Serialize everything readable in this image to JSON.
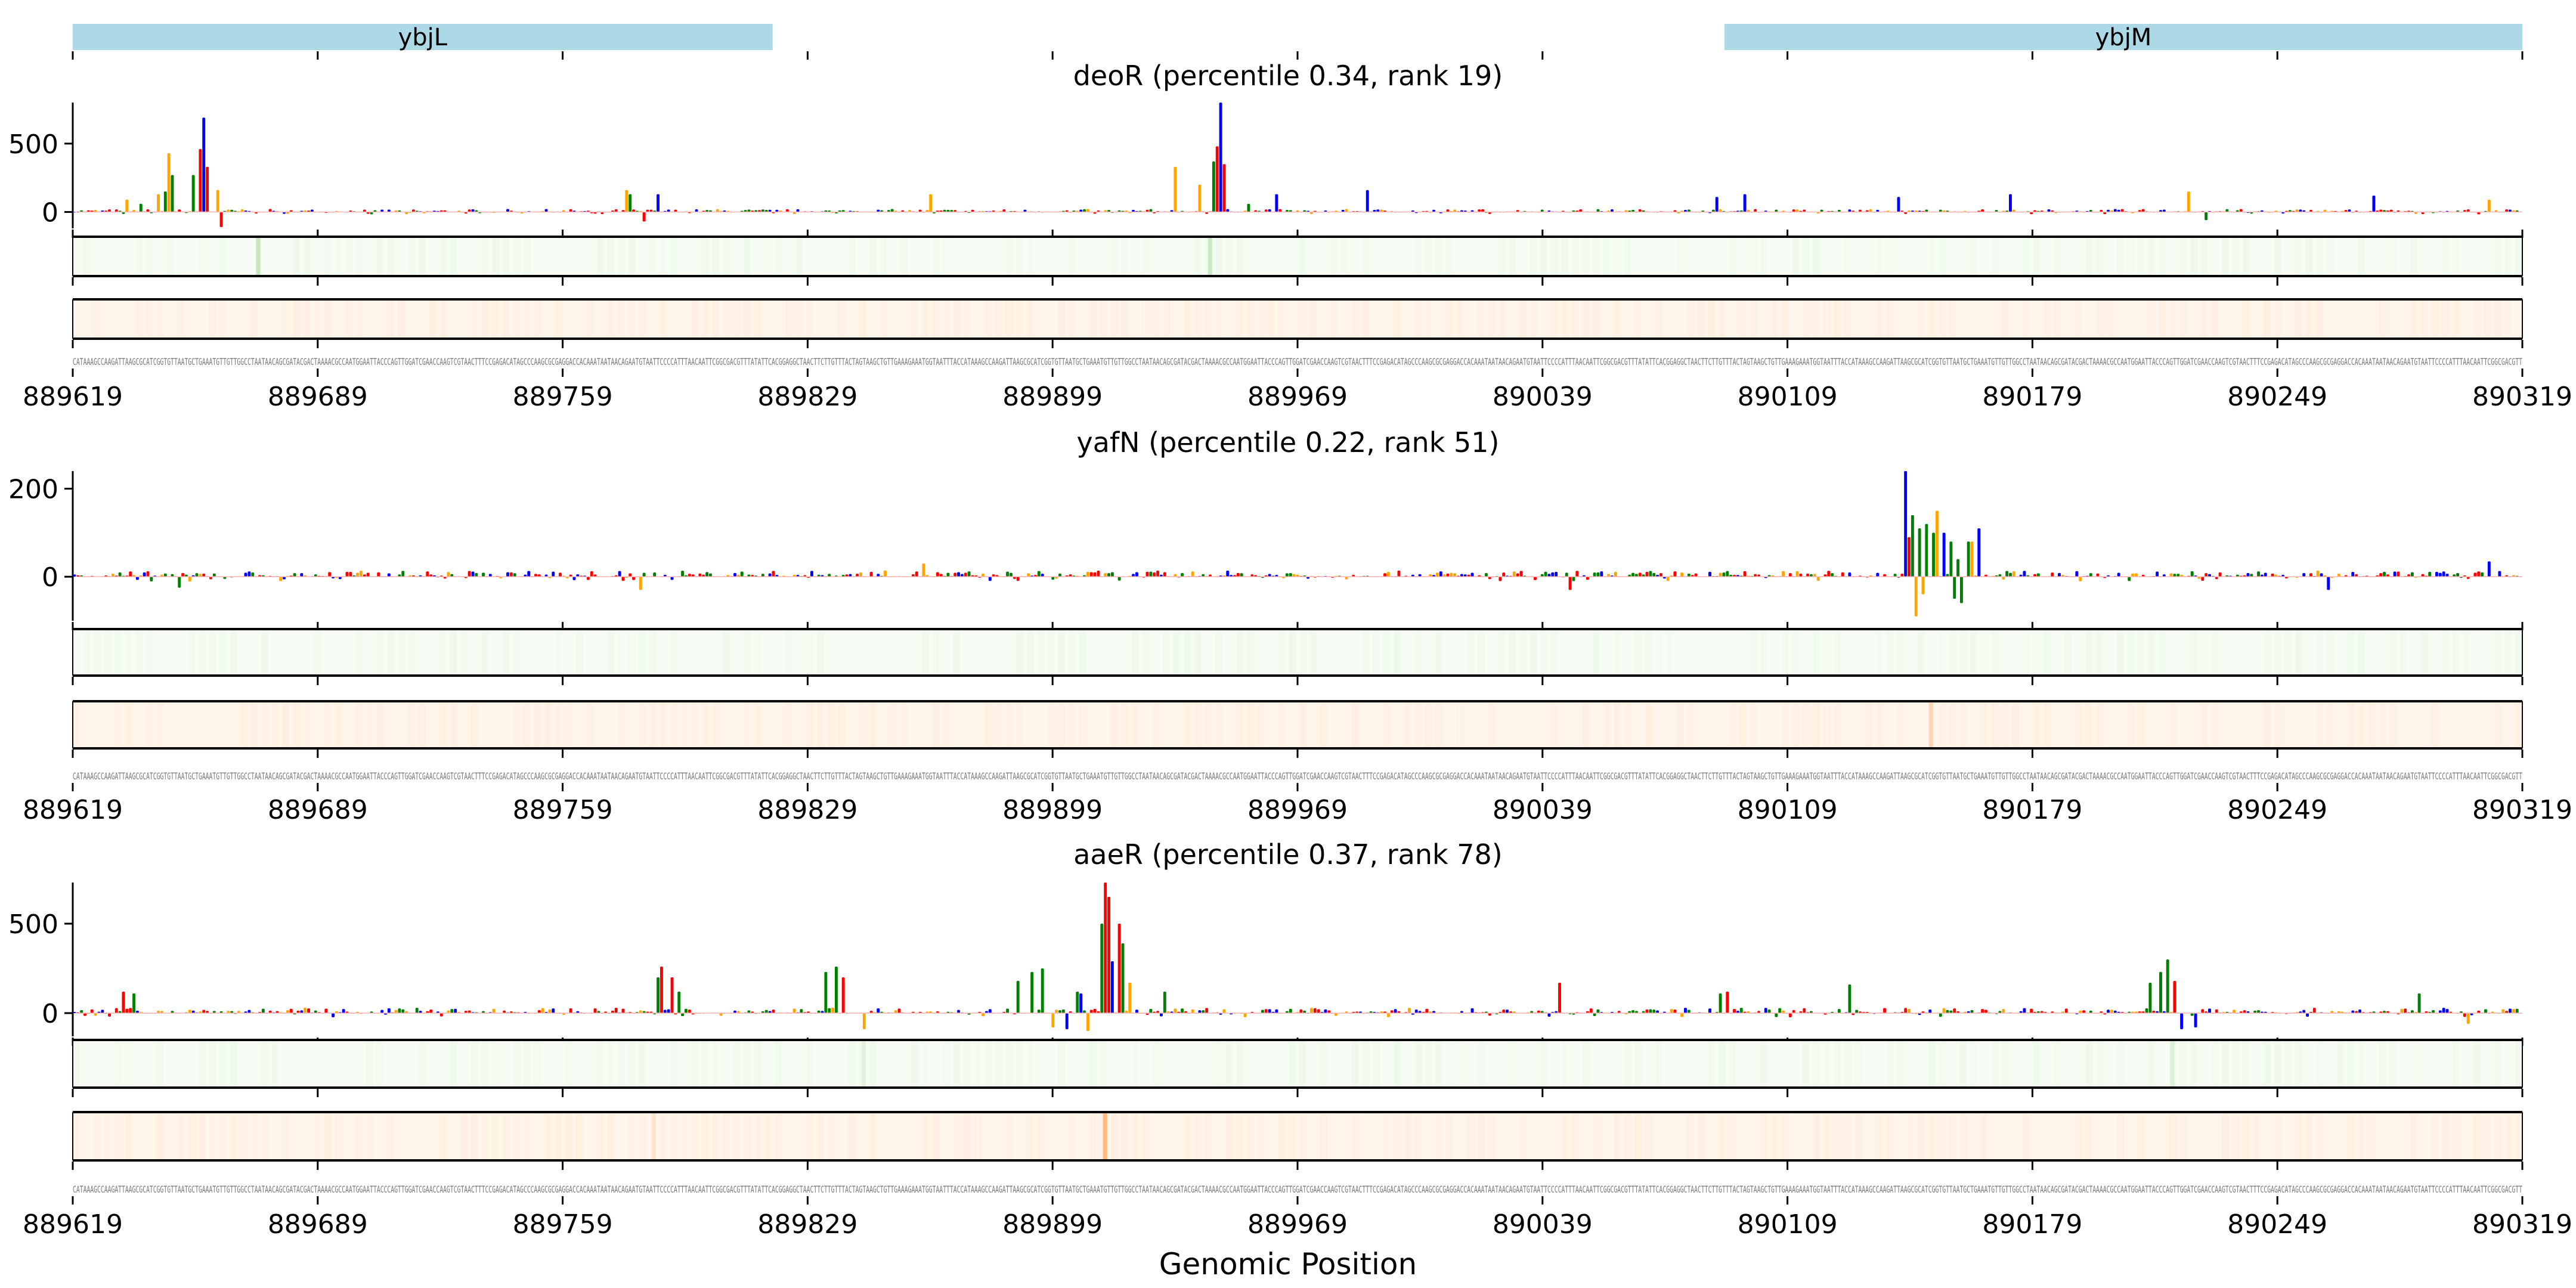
{
  "figure": {
    "xlabel": "Genomic Position",
    "x_range": [
      889619,
      890319
    ],
    "x_ticks": [
      889619,
      889689,
      889759,
      889829,
      889899,
      889969,
      890039,
      890109,
      890179,
      890249,
      890319
    ],
    "x_tick_labels": [
      "889619",
      "889689",
      "889759",
      "889829",
      "889899",
      "889969",
      "890039",
      "890109",
      "890179",
      "890249",
      "890319"
    ]
  },
  "genes": [
    {
      "name": "ybjL",
      "start": 889619,
      "end": 889819,
      "color": "#add8e6"
    },
    {
      "name": "ybjM",
      "start": 890091,
      "end": 890319,
      "color": "#add8e6"
    }
  ],
  "colors": {
    "A": "#ff0000",
    "C": "#0000ff",
    "G": "#ffa500",
    "T": "#008000",
    "strip_green_base": "#f7fcf5",
    "strip_green_peak": "#a1d99b",
    "strip_orange_base": "#fff5eb",
    "strip_orange_peak": "#fdae6b",
    "sequence": "#777777"
  },
  "sequence": "CATAAAGCCAAGATTAAGCGCATCGGTGTTAATGCTGAAATGTTGTTGGCCTAATAACAGCGATACGACTAAAACGCCAATGGAATTACCCAGTTGGATCGAACCAAGTCGTAACTTTCCGAGACATAGCCCAAGCGCGAGGACCACAAATAATAACAGAATGTAATTCCCCATTTAACAATTCGGCGACGTTTATATTCACGGAGGCTAACTTCTTGTTTACTAGTAAGCTGTTGAAAGAAATGGTAATTTACCATAAAGCCAAGATTAAGCGCATCGGTGTTAATGCTGAAATGTTGTTGGCCTAATAACAGCGATACGACTAAAACGCCAATGGAATTACCCAGTTGGATCGAACCAAGTCGTAACTTTCCGAGACATAGCCCAAGCGCGAGGACCACAAATAATAACAGAATGTAATTCCCCATTTAACAATTCGGCGACGTTTATATTCACGGAGGCTAACTTCTTGTTTACTAGTAAGCTGTTGAAAGAAATGGTAATTTACCATAAAGCCAAGATTAAGCGCATCGGTGTTAATGCTGAAATGTTGTTGGCCTAATAACAGCGATACGACTAAAACGCCAATGGAATTACCCAGTTGGATCGAACCAAGTCGTAACTTTCCGAGACATAGCCCAAGCGCGAGGACCACAAATAATAACAGAATGTAATTCCCCATTTAACAATTCGGCGACGTTTATA",
  "chart_data": [
    {
      "type": "bar",
      "title": "deoR (percentile 0.34, rank 19)",
      "xlabel": "",
      "ylabel": "",
      "ylim": [
        -120,
        800
      ],
      "y_ticks": [
        0,
        500
      ],
      "y_tick_labels": [
        "0",
        "500"
      ],
      "baseline_noise": 22,
      "peaks": [
        {
          "pos": 889634,
          "value": 90,
          "base": "G"
        },
        {
          "pos": 889638,
          "value": 60,
          "base": "T"
        },
        {
          "pos": 889643,
          "value": 130,
          "base": "G"
        },
        {
          "pos": 889645,
          "value": 150,
          "base": "T"
        },
        {
          "pos": 889646,
          "value": 430,
          "base": "G"
        },
        {
          "pos": 889647,
          "value": 270,
          "base": "T"
        },
        {
          "pos": 889653,
          "value": 270,
          "base": "T"
        },
        {
          "pos": 889655,
          "value": 460,
          "base": "A"
        },
        {
          "pos": 889656,
          "value": 690,
          "base": "C"
        },
        {
          "pos": 889657,
          "value": 330,
          "base": "A"
        },
        {
          "pos": 889660,
          "value": 160,
          "base": "G"
        },
        {
          "pos": 889661,
          "value": -110,
          "base": "A"
        },
        {
          "pos": 889777,
          "value": 160,
          "base": "G"
        },
        {
          "pos": 889778,
          "value": 130,
          "base": "T"
        },
        {
          "pos": 889782,
          "value": -70,
          "base": "A"
        },
        {
          "pos": 889786,
          "value": 130,
          "base": "C"
        },
        {
          "pos": 889864,
          "value": 130,
          "base": "G"
        },
        {
          "pos": 889934,
          "value": 330,
          "base": "G"
        },
        {
          "pos": 889941,
          "value": 200,
          "base": "G"
        },
        {
          "pos": 889945,
          "value": 370,
          "base": "T"
        },
        {
          "pos": 889946,
          "value": 480,
          "base": "A"
        },
        {
          "pos": 889947,
          "value": 800,
          "base": "C"
        },
        {
          "pos": 889948,
          "value": 350,
          "base": "A"
        },
        {
          "pos": 889955,
          "value": 60,
          "base": "T"
        },
        {
          "pos": 889963,
          "value": 130,
          "base": "C"
        },
        {
          "pos": 889989,
          "value": 160,
          "base": "C"
        },
        {
          "pos": 890089,
          "value": 110,
          "base": "C"
        },
        {
          "pos": 890097,
          "value": 130,
          "base": "C"
        },
        {
          "pos": 890141,
          "value": 110,
          "base": "C"
        },
        {
          "pos": 890173,
          "value": 130,
          "base": "C"
        },
        {
          "pos": 890224,
          "value": 150,
          "base": "G"
        },
        {
          "pos": 890229,
          "value": -60,
          "base": "T"
        },
        {
          "pos": 890277,
          "value": 120,
          "base": "C"
        },
        {
          "pos": 890310,
          "value": 90,
          "base": "G"
        }
      ],
      "strip_green_hotspots": [
        {
          "pos": 889672,
          "value": 0.6
        },
        {
          "pos": 889944,
          "value": 0.5
        }
      ],
      "strip_orange_hotspots": []
    },
    {
      "type": "bar",
      "title": "yafN (percentile 0.22, rank 51)",
      "xlabel": "",
      "ylabel": "",
      "ylim": [
        -100,
        240
      ],
      "y_ticks": [
        0,
        200
      ],
      "y_tick_labels": [
        "0",
        "200"
      ],
      "baseline_noise": 14,
      "peaks": [
        {
          "pos": 889649,
          "value": -25,
          "base": "T"
        },
        {
          "pos": 889781,
          "value": -30,
          "base": "G"
        },
        {
          "pos": 889862,
          "value": 30,
          "base": "G"
        },
        {
          "pos": 890047,
          "value": -30,
          "base": "A"
        },
        {
          "pos": 890143,
          "value": 240,
          "base": "C"
        },
        {
          "pos": 890144,
          "value": 90,
          "base": "A"
        },
        {
          "pos": 890145,
          "value": 140,
          "base": "T"
        },
        {
          "pos": 890146,
          "value": -90,
          "base": "G"
        },
        {
          "pos": 890147,
          "value": 110,
          "base": "T"
        },
        {
          "pos": 890148,
          "value": -40,
          "base": "G"
        },
        {
          "pos": 890149,
          "value": 120,
          "base": "T"
        },
        {
          "pos": 890151,
          "value": 100,
          "base": "T"
        },
        {
          "pos": 890152,
          "value": 150,
          "base": "G"
        },
        {
          "pos": 890154,
          "value": 100,
          "base": "C"
        },
        {
          "pos": 890156,
          "value": 80,
          "base": "T"
        },
        {
          "pos": 890157,
          "value": -50,
          "base": "T"
        },
        {
          "pos": 890158,
          "value": 40,
          "base": "T"
        },
        {
          "pos": 890159,
          "value": -60,
          "base": "T"
        },
        {
          "pos": 890161,
          "value": 80,
          "base": "T"
        },
        {
          "pos": 890162,
          "value": 80,
          "base": "G"
        },
        {
          "pos": 890164,
          "value": 110,
          "base": "C"
        },
        {
          "pos": 890264,
          "value": -30,
          "base": "C"
        },
        {
          "pos": 890310,
          "value": 35,
          "base": "C"
        }
      ],
      "strip_green_hotspots": [],
      "strip_orange_hotspots": [
        {
          "pos": 890150,
          "value": 0.45
        }
      ]
    },
    {
      "type": "bar",
      "title": "aaeR (percentile 0.37, rank 78)",
      "xlabel": "Genomic Position",
      "ylabel": "",
      "ylim": [
        -130,
        730
      ],
      "y_ticks": [
        0,
        500
      ],
      "y_tick_labels": [
        "0",
        "500"
      ],
      "baseline_noise": 30,
      "peaks": [
        {
          "pos": 889633,
          "value": 120,
          "base": "A"
        },
        {
          "pos": 889636,
          "value": 110,
          "base": "T"
        },
        {
          "pos": 889786,
          "value": 200,
          "base": "T"
        },
        {
          "pos": 889787,
          "value": 260,
          "base": "A"
        },
        {
          "pos": 889790,
          "value": 200,
          "base": "A"
        },
        {
          "pos": 889792,
          "value": 120,
          "base": "T"
        },
        {
          "pos": 889834,
          "value": 230,
          "base": "T"
        },
        {
          "pos": 889837,
          "value": 260,
          "base": "T"
        },
        {
          "pos": 889839,
          "value": 200,
          "base": "A"
        },
        {
          "pos": 889845,
          "value": -90,
          "base": "G"
        },
        {
          "pos": 889889,
          "value": 180,
          "base": "T"
        },
        {
          "pos": 889893,
          "value": 230,
          "base": "T"
        },
        {
          "pos": 889896,
          "value": 250,
          "base": "T"
        },
        {
          "pos": 889899,
          "value": -80,
          "base": "G"
        },
        {
          "pos": 889903,
          "value": -90,
          "base": "C"
        },
        {
          "pos": 889906,
          "value": 120,
          "base": "T"
        },
        {
          "pos": 889907,
          "value": 110,
          "base": "C"
        },
        {
          "pos": 889909,
          "value": -100,
          "base": "G"
        },
        {
          "pos": 889913,
          "value": 500,
          "base": "T"
        },
        {
          "pos": 889914,
          "value": 730,
          "base": "A"
        },
        {
          "pos": 889915,
          "value": 650,
          "base": "A"
        },
        {
          "pos": 889916,
          "value": 290,
          "base": "C"
        },
        {
          "pos": 889918,
          "value": 500,
          "base": "A"
        },
        {
          "pos": 889919,
          "value": 390,
          "base": "T"
        },
        {
          "pos": 889921,
          "value": 170,
          "base": "G"
        },
        {
          "pos": 889931,
          "value": 120,
          "base": "T"
        },
        {
          "pos": 890044,
          "value": 170,
          "base": "A"
        },
        {
          "pos": 890090,
          "value": 110,
          "base": "T"
        },
        {
          "pos": 890092,
          "value": 120,
          "base": "A"
        },
        {
          "pos": 890127,
          "value": 160,
          "base": "T"
        },
        {
          "pos": 890213,
          "value": 170,
          "base": "T"
        },
        {
          "pos": 890216,
          "value": 230,
          "base": "T"
        },
        {
          "pos": 890218,
          "value": 300,
          "base": "T"
        },
        {
          "pos": 890220,
          "value": 180,
          "base": "A"
        },
        {
          "pos": 890222,
          "value": -90,
          "base": "C"
        },
        {
          "pos": 890226,
          "value": -80,
          "base": "C"
        },
        {
          "pos": 890290,
          "value": 110,
          "base": "T"
        },
        {
          "pos": 890304,
          "value": -60,
          "base": "G"
        }
      ],
      "strip_green_hotspots": [
        {
          "pos": 889845,
          "value": 0.2
        },
        {
          "pos": 890219,
          "value": 0.25
        }
      ],
      "strip_orange_hotspots": [
        {
          "pos": 889785,
          "value": 0.25
        },
        {
          "pos": 889914,
          "value": 0.8
        }
      ]
    }
  ]
}
